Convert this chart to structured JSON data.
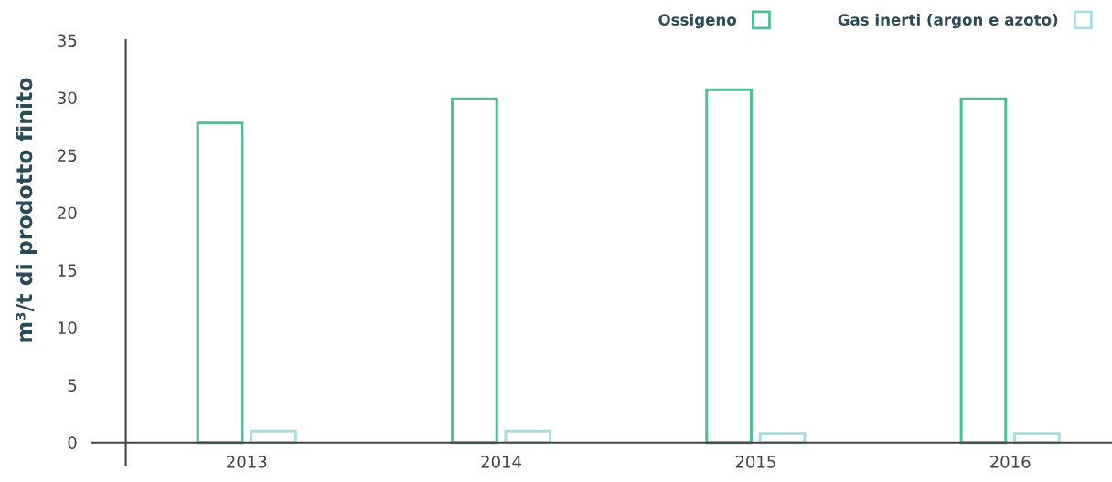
{
  "chart_data": {
    "type": "bar",
    "ylabel": "m³/t di prodotto finito",
    "categories": [
      "2013",
      "2014",
      "2015",
      "2016"
    ],
    "series": [
      {
        "name": "Ossigeno",
        "color": "#4dbf9a",
        "values": [
          27.8,
          29.9,
          30.7,
          29.9
        ]
      },
      {
        "name": "Gas inerti (argon e azoto)",
        "color": "#a8dde3",
        "values": [
          1.0,
          1.0,
          0.8,
          0.8
        ]
      }
    ],
    "ylim": [
      -2,
      35
    ],
    "yticks": [
      0,
      5,
      10,
      15,
      20,
      25,
      30,
      35
    ],
    "grid": false,
    "legend": "top right"
  }
}
